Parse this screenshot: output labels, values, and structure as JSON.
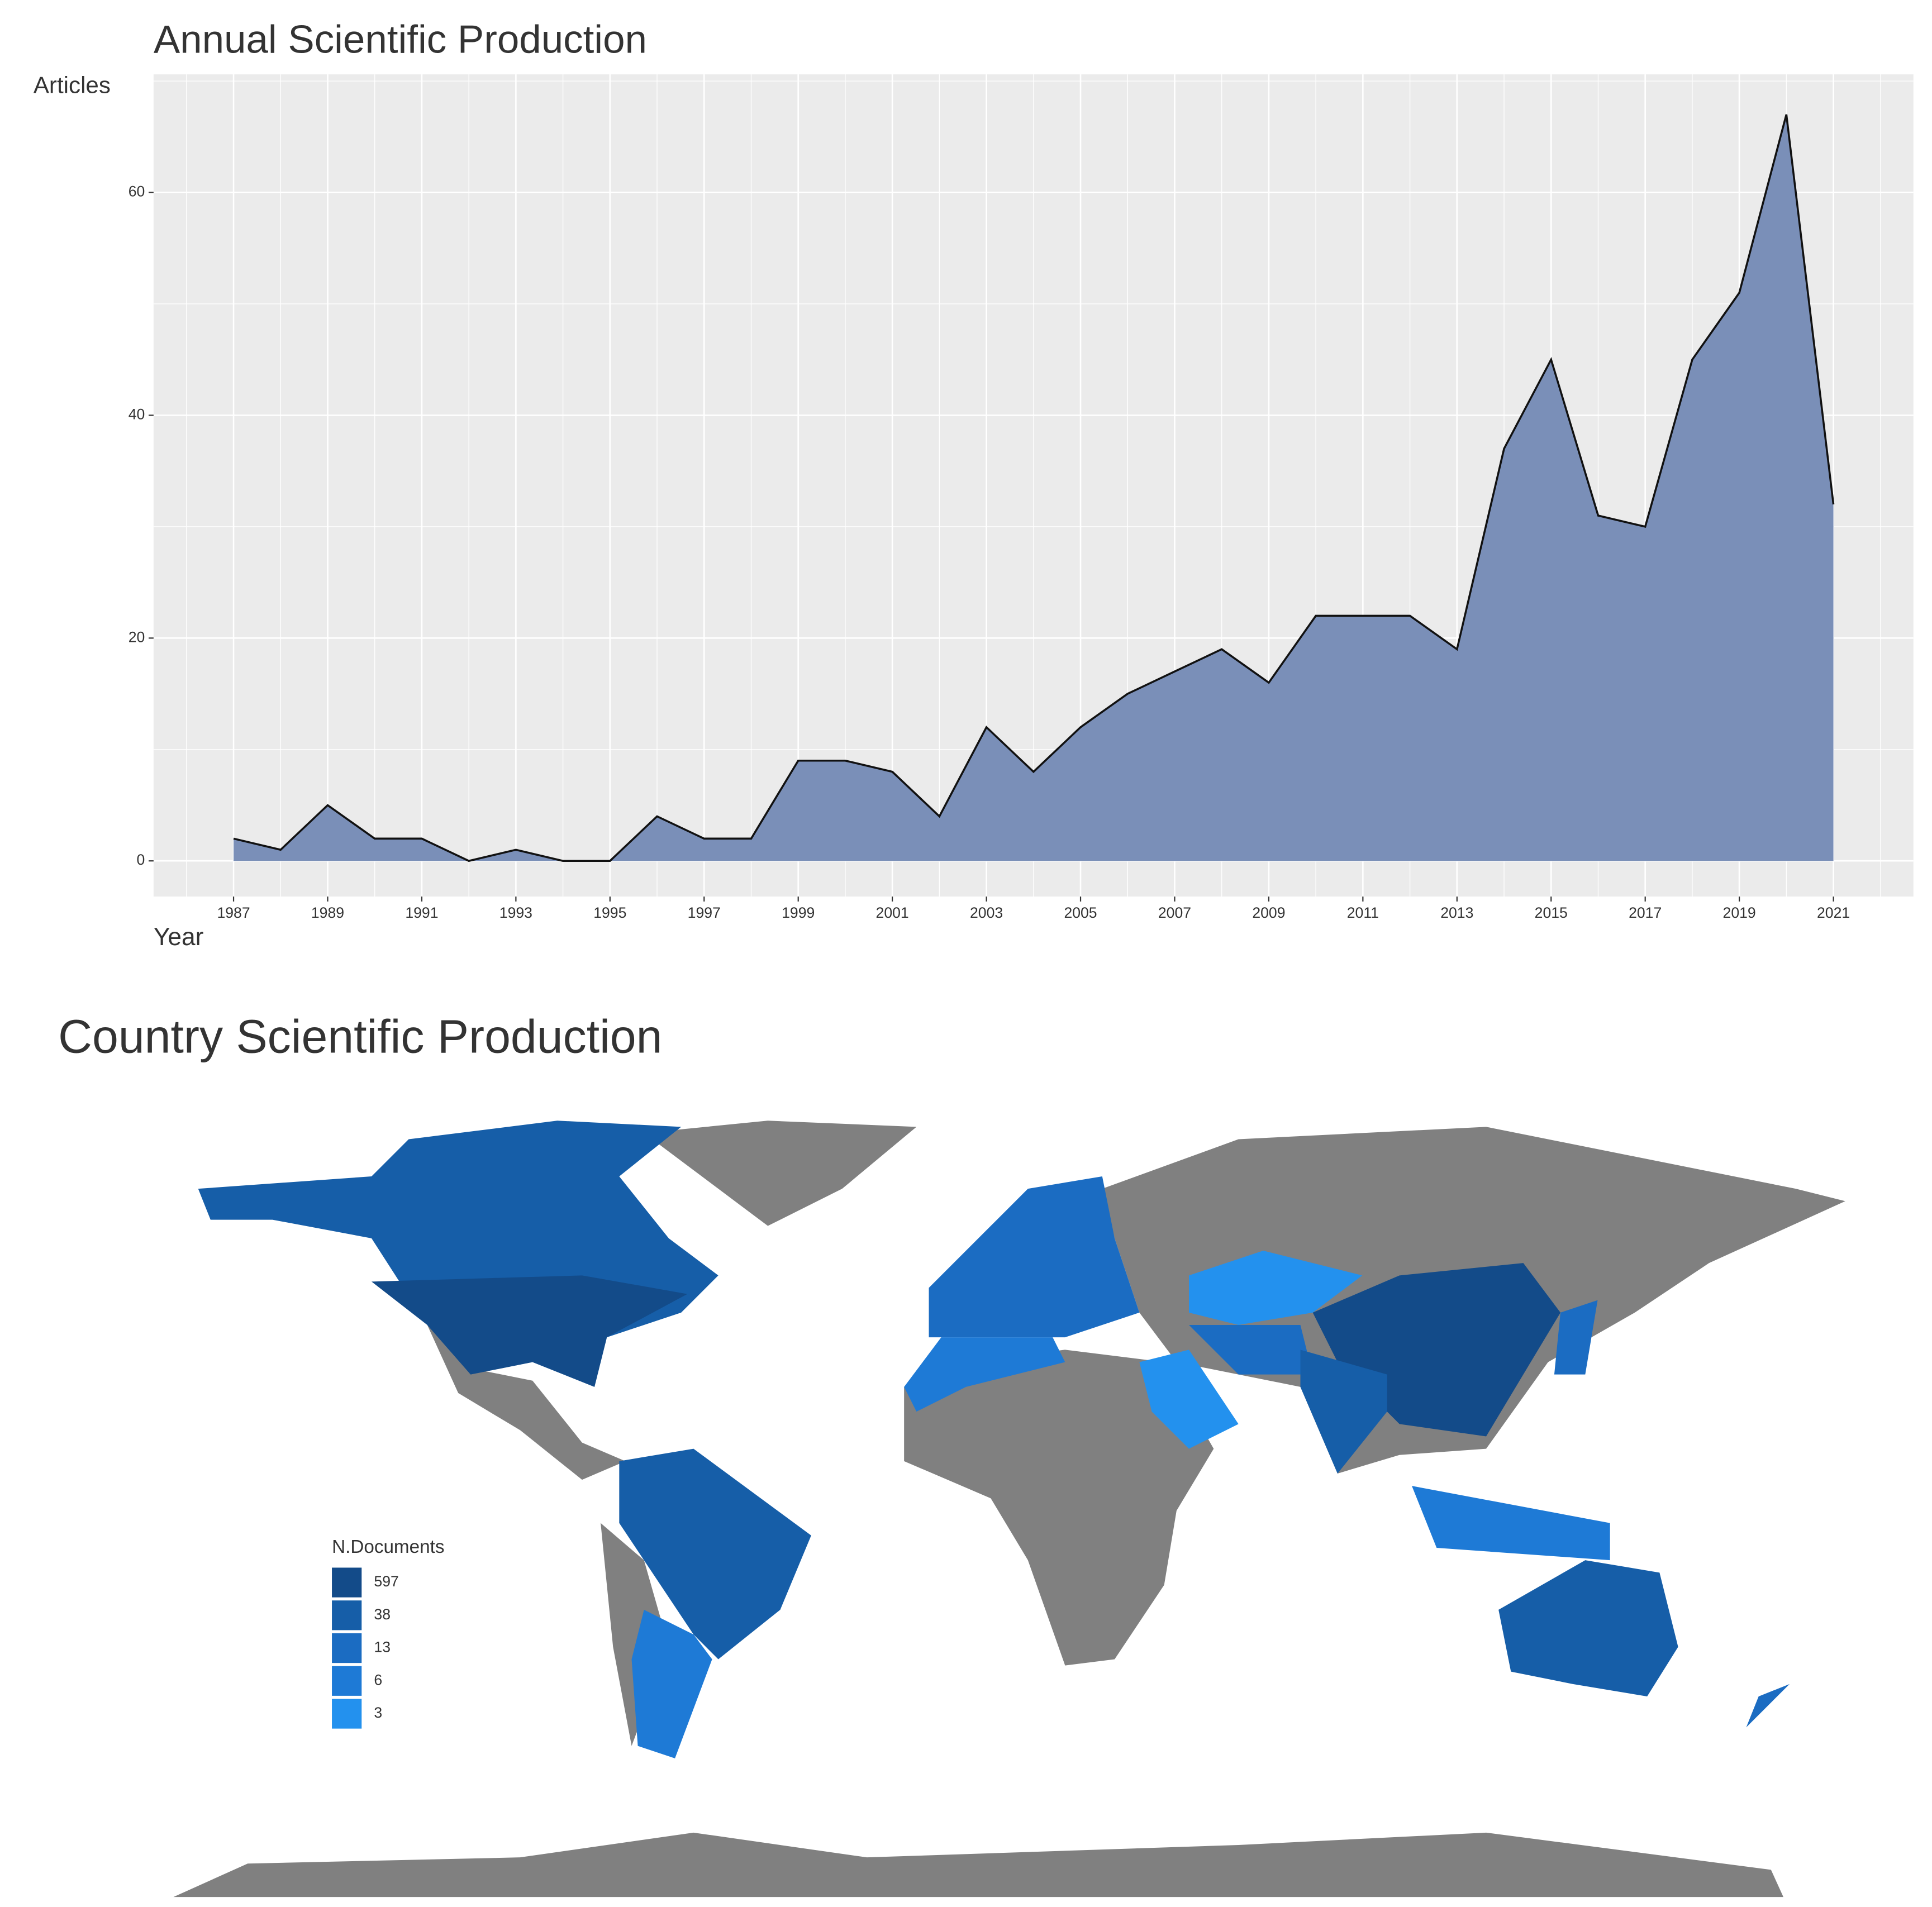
{
  "chart_data": [
    {
      "type": "area",
      "title": "Annual Scientific Production",
      "ylabel": "Articles",
      "xlabel": "Year",
      "x": [
        1987,
        1988,
        1989,
        1990,
        1991,
        1992,
        1993,
        1994,
        1995,
        1996,
        1997,
        1998,
        1999,
        2000,
        2001,
        2002,
        2003,
        2004,
        2005,
        2006,
        2007,
        2008,
        2009,
        2010,
        2011,
        2012,
        2013,
        2014,
        2015,
        2016,
        2017,
        2018,
        2019,
        2020,
        2021
      ],
      "values": [
        2,
        1,
        5,
        2,
        2,
        0,
        1,
        0,
        0,
        4,
        2,
        2,
        9,
        9,
        8,
        4,
        12,
        8,
        12,
        15,
        17,
        19,
        16,
        22,
        22,
        22,
        19,
        37,
        45,
        31,
        30,
        45,
        51,
        67,
        32
      ],
      "color": "#7a8fb8",
      "line_color": "#111111",
      "xlim": [
        1985.3,
        2022.7
      ],
      "ylim": [
        -3.2,
        70.6
      ],
      "xticks": [
        1987,
        1989,
        1991,
        1993,
        1995,
        1997,
        1999,
        2001,
        2003,
        2005,
        2007,
        2009,
        2011,
        2013,
        2015,
        2017,
        2019,
        2021
      ],
      "yticks": [
        0,
        20,
        40,
        60
      ],
      "grid": true
    },
    {
      "type": "choropleth",
      "title": "Country Scientific Production",
      "legend": {
        "title": "N.Documents",
        "values": [
          597,
          38,
          13,
          6,
          3
        ],
        "colors": [
          "#134b89",
          "#165ea8",
          "#1b6cc2",
          "#1e7ad6",
          "#2391ee"
        ]
      },
      "missing_color": "#808080"
    }
  ]
}
